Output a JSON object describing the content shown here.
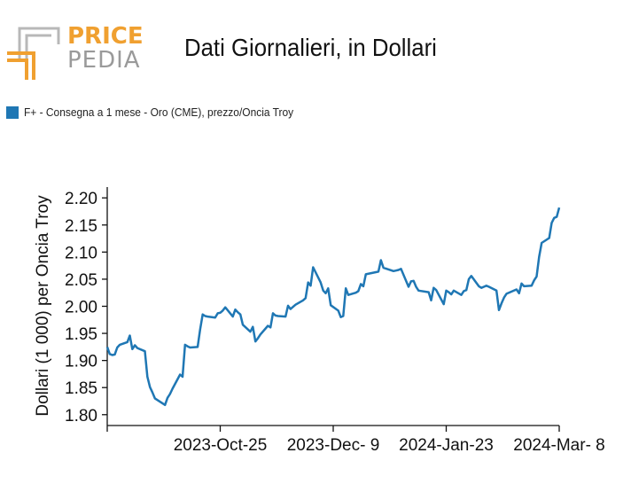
{
  "header": {
    "logo_word_1": "PRICE",
    "logo_word_2": "PEDIA",
    "title": "Dati Giornalieri, in Dollari"
  },
  "colors": {
    "series": "#1f77b4",
    "logo_orange": "#f0a030",
    "logo_gray": "#9a9a9a"
  },
  "chart_data": {
    "type": "line",
    "title": "Dati Giornalieri, in Dollari",
    "ylabel": "Dollari (1 000) per Oncia Troy",
    "xlabel": "",
    "ylim": [
      1.78,
      2.22
    ],
    "y_ticks": [
      "1.80",
      "1.85",
      "1.90",
      "1.95",
      "2.00",
      "2.05",
      "2.10",
      "2.15",
      "2.20"
    ],
    "x_ticks": [
      "2023-Oct-25",
      "2023-Dec- 9",
      "2024-Jan-23",
      "2024-Mar- 8"
    ],
    "legend_position": "top-left",
    "series": [
      {
        "name": "F+ - Consegna a 1 mese - Oro (CME), prezzo/Oncia Troy",
        "x": [
          "2023-Sep-10",
          "2023-Sep-11",
          "2023-Sep-12",
          "2023-Sep-13",
          "2023-Sep-14",
          "2023-Sep-15",
          "2023-Sep-18",
          "2023-Sep-19",
          "2023-Sep-20",
          "2023-Sep-21",
          "2023-Sep-22",
          "2023-Sep-25",
          "2023-Sep-26",
          "2023-Sep-27",
          "2023-Sep-28",
          "2023-Sep-29",
          "2023-Oct-02",
          "2023-Oct-03",
          "2023-Oct-04",
          "2023-Oct-05",
          "2023-Oct-06",
          "2023-Oct-09",
          "2023-Oct-10",
          "2023-Oct-11",
          "2023-Oct-12",
          "2023-Oct-13",
          "2023-Oct-16",
          "2023-Oct-17",
          "2023-Oct-18",
          "2023-Oct-19",
          "2023-Oct-20",
          "2023-Oct-23",
          "2023-Oct-24",
          "2023-Oct-25",
          "2023-Oct-26",
          "2023-Oct-27",
          "2023-Oct-30",
          "2023-Oct-31",
          "2023-Nov-01",
          "2023-Nov-02",
          "2023-Nov-03",
          "2023-Nov-06",
          "2023-Nov-07",
          "2023-Nov-08",
          "2023-Nov-09",
          "2023-Nov-10",
          "2023-Nov-13",
          "2023-Nov-14",
          "2023-Nov-15",
          "2023-Nov-16",
          "2023-Nov-17",
          "2023-Nov-20",
          "2023-Nov-21",
          "2023-Nov-22",
          "2023-Nov-24",
          "2023-Nov-27",
          "2023-Nov-28",
          "2023-Nov-29",
          "2023-Nov-30",
          "2023-Dec-01",
          "2023-Dec-04",
          "2023-Dec-05",
          "2023-Dec-06",
          "2023-Dec-07",
          "2023-Dec-08",
          "2023-Dec-11",
          "2023-Dec-12",
          "2023-Dec-13",
          "2023-Dec-14",
          "2023-Dec-15",
          "2023-Dec-18",
          "2023-Dec-19",
          "2023-Dec-20",
          "2023-Dec-21",
          "2023-Dec-22",
          "2023-Dec-26",
          "2023-Dec-27",
          "2023-Dec-28",
          "2023-Dec-29",
          "2024-Jan-02",
          "2024-Jan-03",
          "2024-Jan-04",
          "2024-Jan-05",
          "2024-Jan-08",
          "2024-Jan-09",
          "2024-Jan-10",
          "2024-Jan-11",
          "2024-Jan-12",
          "2024-Jan-16",
          "2024-Jan-17",
          "2024-Jan-18",
          "2024-Jan-19",
          "2024-Jan-22",
          "2024-Jan-23",
          "2024-Jan-24",
          "2024-Jan-25",
          "2024-Jan-26",
          "2024-Jan-29",
          "2024-Jan-30",
          "2024-Jan-31",
          "2024-Feb-01",
          "2024-Feb-02",
          "2024-Feb-05",
          "2024-Feb-06",
          "2024-Feb-07",
          "2024-Feb-08",
          "2024-Feb-09",
          "2024-Feb-12",
          "2024-Feb-13",
          "2024-Feb-14",
          "2024-Feb-15",
          "2024-Feb-16",
          "2024-Feb-20",
          "2024-Feb-21",
          "2024-Feb-22",
          "2024-Feb-23",
          "2024-Feb-26",
          "2024-Feb-27",
          "2024-Feb-28",
          "2024-Feb-29",
          "2024-Mar-01",
          "2024-Mar-04",
          "2024-Mar-05",
          "2024-Mar-06",
          "2024-Mar-07",
          "2024-Mar-08"
        ],
        "y": [
          1.925,
          1.912,
          1.91,
          1.911,
          1.924,
          1.929,
          1.934,
          1.946,
          1.921,
          1.928,
          1.923,
          1.917,
          1.87,
          1.851,
          1.841,
          1.83,
          1.821,
          1.818,
          1.831,
          1.838,
          1.848,
          1.874,
          1.87,
          1.929,
          1.926,
          1.924,
          1.925,
          1.957,
          1.985,
          1.982,
          1.981,
          1.979,
          1.987,
          1.988,
          1.992,
          1.998,
          1.981,
          1.994,
          1.989,
          1.985,
          1.966,
          1.953,
          1.962,
          1.935,
          1.941,
          1.948,
          1.964,
          1.961,
          1.987,
          1.983,
          1.982,
          1.981,
          2.001,
          1.995,
          2.003,
          2.011,
          2.015,
          2.044,
          2.038,
          2.072,
          2.044,
          2.029,
          2.024,
          2.033,
          2.002,
          1.992,
          1.98,
          1.982,
          2.033,
          2.021,
          2.025,
          2.028,
          2.041,
          2.037,
          2.059,
          2.063,
          2.064,
          2.085,
          2.071,
          2.065,
          2.066,
          2.067,
          2.069,
          2.036,
          2.046,
          2.047,
          2.036,
          2.029,
          2.026,
          2.011,
          2.034,
          2.03,
          2.004,
          2.029,
          2.026,
          2.022,
          2.029,
          2.021,
          2.028,
          2.03,
          2.05,
          2.056,
          2.037,
          2.034,
          2.036,
          2.038,
          2.036,
          2.029,
          1.993,
          2.005,
          2.016,
          2.023,
          2.031,
          2.024,
          2.042,
          2.037,
          2.038,
          2.048,
          2.055,
          2.091,
          2.117,
          2.126,
          2.154,
          2.163,
          2.165,
          2.182
        ]
      }
    ]
  }
}
